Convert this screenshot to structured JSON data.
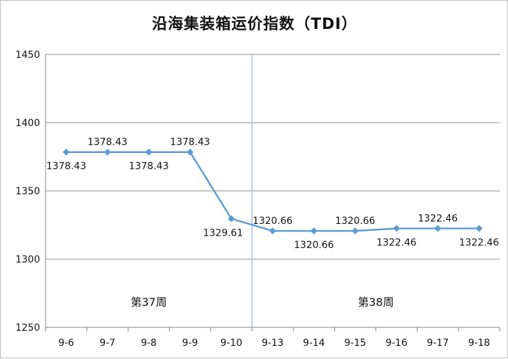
{
  "chart_data": {
    "type": "line",
    "title": "沿海集装箱运价指数（TDI）",
    "xlabel": "",
    "ylabel": "",
    "categories": [
      "9-6",
      "9-7",
      "9-8",
      "9-9",
      "9-10",
      "9-13",
      "9-14",
      "9-15",
      "9-16",
      "9-17",
      "9-18"
    ],
    "series": [
      {
        "values": [
          1378.43,
          1378.43,
          1378.43,
          1378.43,
          1329.61,
          1320.66,
          1320.66,
          1320.66,
          1322.46,
          1322.46,
          1322.46
        ],
        "data_labels": [
          "1378.43",
          "1378.43",
          "1378.43",
          "1378.43",
          "1329.61",
          "1320.66",
          "1320.66",
          "1320.66",
          "1322.46",
          "1322.46",
          "1322.46"
        ]
      }
    ],
    "ylim": [
      1250,
      1450
    ],
    "yticks": [
      1250,
      1300,
      1350,
      1400,
      1450
    ],
    "grid": true,
    "legend": "none",
    "week_labels": [
      "第37周",
      "第38周"
    ],
    "colors": {
      "line": "#5b9bd5",
      "grid": "#8c8c8c",
      "divider": "#9dc3e6",
      "axis": "#808080"
    }
  }
}
